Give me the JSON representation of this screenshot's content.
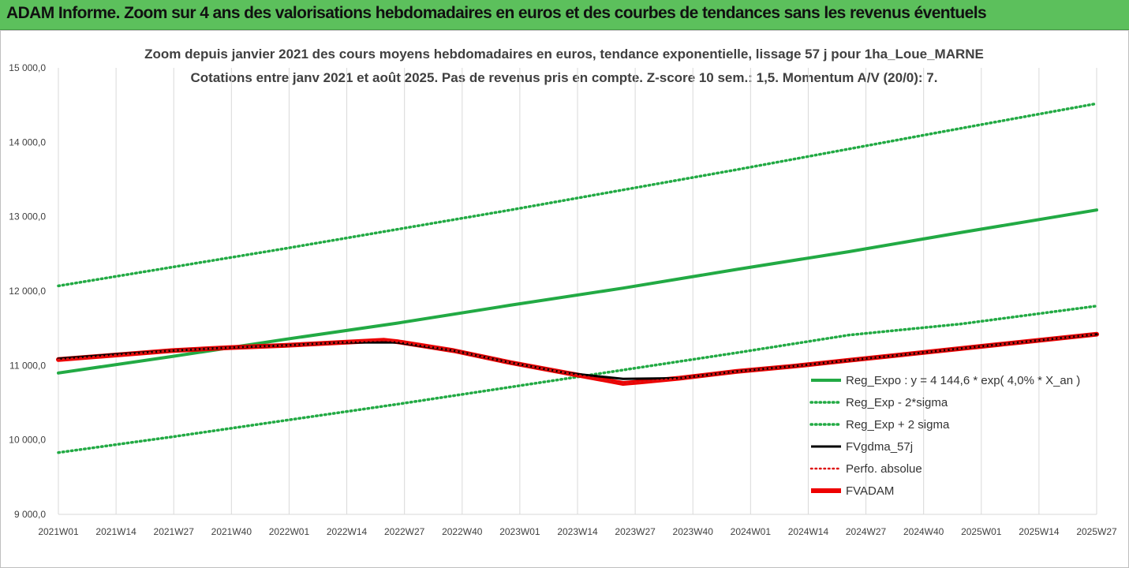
{
  "banner": {
    "text": "ADAM Informe. Zoom sur 4 ans des valorisations hebdomadaires en euros et des courbes de tendances sans les revenus éventuels"
  },
  "chart_data": {
    "type": "line",
    "title": "Zoom depuis janvier 2021 des cours moyens hebdomadaires en euros, tendance exponentielle, lissage 57 j pour 1ha_Loue_MARNE",
    "subtitle": "Cotations entre janv 2021 et août 2025.  Pas de revenus pris en compte. Z-score 10 sem.: 1,5. Momentum A/V (20/0): 7.",
    "xlabel": "",
    "ylabel": "",
    "ylim": [
      9000,
      15000
    ],
    "yticks": [
      "9 000,0",
      "10 000,0",
      "11 000,0",
      "12 000,0",
      "13 000,0",
      "14 000,0",
      "15 000,0"
    ],
    "ytick_values": [
      9000,
      10000,
      11000,
      12000,
      13000,
      14000,
      15000
    ],
    "x_tick_labels": [
      "2021W01",
      "2021W14",
      "2021W27",
      "2021W40",
      "2022W01",
      "2022W14",
      "2022W27",
      "2022W40",
      "2023W01",
      "2023W14",
      "2023W27",
      "2023W40",
      "2024W01",
      "2024W14",
      "2024W27",
      "2024W40",
      "2025W01",
      "2025W14",
      "2025W27"
    ],
    "x_range_weeks": [
      0,
      239
    ],
    "grid": "vertical",
    "legend_position": "bottom-right",
    "series": [
      {
        "name": "Reg_Expo : y = 4 144,6 * exp( 4,0% *  X_an )",
        "color": "#22aa44",
        "style": "solid",
        "x_weeks": [
          0,
          26,
          52,
          78,
          104,
          130,
          156,
          182,
          208,
          239
        ],
        "values": [
          10900,
          11120,
          11350,
          11570,
          11810,
          12040,
          12290,
          12530,
          12790,
          13090
        ]
      },
      {
        "name": "Reg_Exp - 2*sigma",
        "color": "#22aa44",
        "style": "dotted",
        "x_weeks": [
          0,
          26,
          52,
          78,
          104,
          130,
          156,
          182,
          208,
          239
        ],
        "values": [
          9830,
          10040,
          10260,
          10480,
          10710,
          10940,
          11170,
          11410,
          11560,
          11800
        ]
      },
      {
        "name": "Reg_Exp + 2 sigma",
        "color": "#22aa44",
        "style": "dotted",
        "x_weeks": [
          0,
          26,
          52,
          78,
          104,
          130,
          156,
          182,
          208,
          239
        ],
        "values": [
          12070,
          12320,
          12570,
          12830,
          13090,
          13360,
          13630,
          13910,
          14190,
          14520
        ]
      },
      {
        "name": "FVgdma_57j",
        "color": "#000000",
        "style": "solid",
        "x_weeks": [
          0,
          13,
          26,
          39,
          52,
          65,
          78,
          91,
          104,
          117,
          130,
          143,
          156,
          169,
          182,
          195,
          208,
          221,
          239
        ],
        "values": [
          11090,
          11150,
          11200,
          11240,
          11270,
          11310,
          11310,
          11200,
          11040,
          10900,
          10820,
          10830,
          10920,
          10990,
          11070,
          11150,
          11230,
          11310,
          11420
        ]
      },
      {
        "name": "Perfo. absolue",
        "color": "#dd1111",
        "style": "dotted",
        "x_weeks": [
          0,
          13,
          26,
          39,
          52,
          65,
          75,
          78,
          91,
          104,
          117,
          130,
          134,
          143,
          156,
          169,
          182,
          195,
          208,
          221,
          239
        ],
        "values": [
          11080,
          11140,
          11200,
          11240,
          11270,
          11310,
          11340,
          11320,
          11200,
          11040,
          10900,
          10760,
          10780,
          10830,
          10920,
          10990,
          11070,
          11150,
          11230,
          11310,
          11420
        ]
      },
      {
        "name": "FVADAM",
        "color": "#ee0000",
        "style": "solid",
        "x_weeks": [
          0,
          13,
          26,
          39,
          52,
          65,
          75,
          78,
          91,
          104,
          117,
          130,
          134,
          143,
          156,
          169,
          182,
          195,
          208,
          221,
          239
        ],
        "values": [
          11080,
          11140,
          11200,
          11240,
          11270,
          11310,
          11340,
          11320,
          11200,
          11040,
          10900,
          10760,
          10780,
          10830,
          10920,
          10990,
          11070,
          11150,
          11230,
          11310,
          11420
        ]
      }
    ]
  }
}
